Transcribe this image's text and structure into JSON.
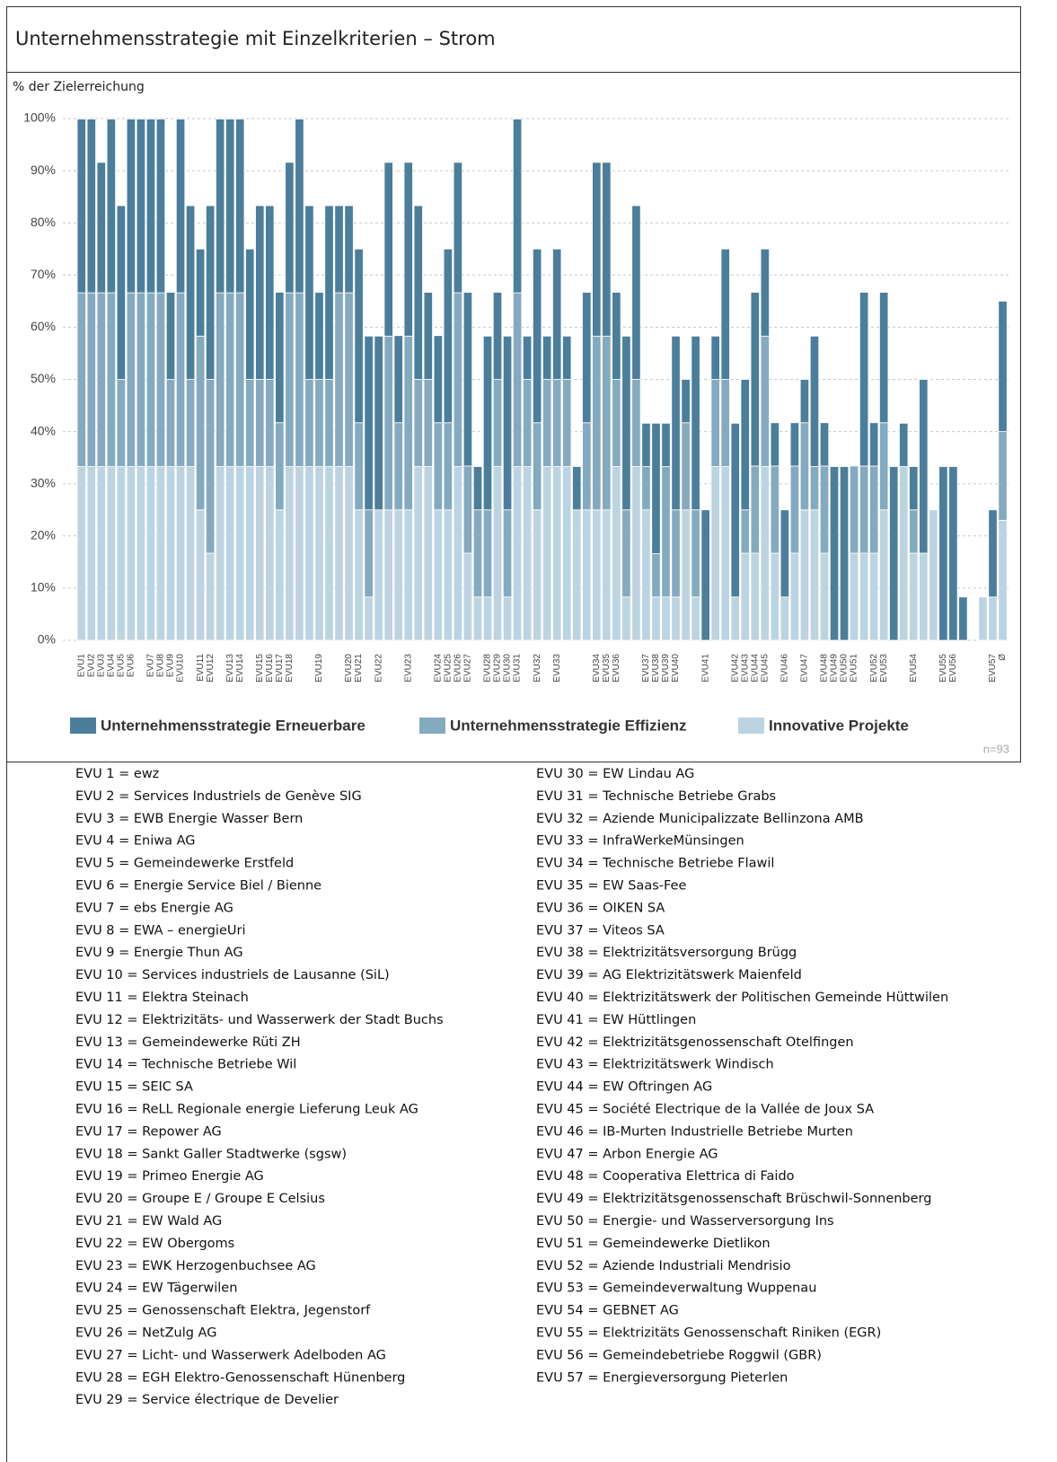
{
  "chart_data": {
    "type": "bar",
    "stacked": true,
    "title": "Unternehmensstrategie mit Einzelkriterien – Strom",
    "y_label": "% der Zielerreichung",
    "note": "n=93",
    "categories": [
      "EVU1",
      "EVU2",
      "EVU3",
      "EVU4",
      "EVU5",
      "EVU6",
      null,
      "EVU7",
      "EVU8",
      "EVU9",
      "EVU10",
      null,
      "EVU11",
      "EVU12",
      null,
      "EVU13",
      "EVU14",
      null,
      "EVU15",
      "EVU16",
      "EVU17",
      "EVU18",
      null,
      null,
      "EVU19",
      null,
      null,
      "EVU20",
      "EVU21",
      null,
      "EVU22",
      null,
      null,
      "EVU23",
      null,
      null,
      "EVU24",
      "EVU25",
      "EVU26",
      "EVU27",
      null,
      "EVU28",
      "EVU29",
      "EVU30",
      "EVU31",
      null,
      "EVU32",
      null,
      "EVU33",
      null,
      null,
      null,
      "EVU34",
      "EVU35",
      "EVU36",
      null,
      null,
      "EVU37",
      "EVU38",
      "EVU39",
      "EVU40",
      null,
      null,
      "EVU41",
      null,
      null,
      "EVU42",
      "EVU43",
      "EVU44",
      "EVU45",
      null,
      "EVU46",
      null,
      "EVU47",
      null,
      "EVU48",
      "EVU49",
      "EVU50",
      "EVU51",
      null,
      "EVU52",
      "EVU53",
      null,
      null,
      "EVU54",
      null,
      null,
      "EVU55",
      "EVU56",
      null,
      null,
      null,
      "EVU57",
      "Ø"
    ],
    "series": [
      {
        "name": "Innovative Projekte",
        "color": "#bcd4e1",
        "values": [
          33.3,
          33.3,
          33.3,
          33.3,
          33.3,
          33.3,
          33.3,
          33.3,
          33.3,
          33.3,
          33.3,
          33.3,
          25,
          16.7,
          33.3,
          33.3,
          33.3,
          33.3,
          33.3,
          33.3,
          25,
          33.3,
          33.3,
          33.3,
          33.3,
          33.3,
          33.3,
          33.3,
          25,
          8.3,
          25,
          25,
          25,
          25,
          33.3,
          33.3,
          25,
          25,
          33.3,
          16.7,
          8.3,
          8.3,
          33.3,
          8.3,
          33.3,
          33.3,
          25,
          33.3,
          33.3,
          33.3,
          25,
          25,
          25,
          25,
          33.3,
          8.3,
          33.3,
          25,
          8.3,
          8.3,
          8.3,
          25,
          8.3,
          0,
          33.3,
          33.3,
          8.3,
          16.7,
          16.7,
          33.3,
          16.7,
          8.3,
          16.7,
          25,
          25,
          16.7,
          0,
          0,
          16.7,
          16.7,
          16.7,
          25,
          0,
          33.3,
          16.7,
          16.7,
          25,
          0,
          0,
          0,
          0,
          8.3,
          8.3,
          23
        ]
      },
      {
        "name": "Unternehmensstrategie Effizienz",
        "color": "#84aabf",
        "values": [
          33.3,
          33.3,
          33.3,
          33.3,
          16.7,
          33.3,
          33.3,
          33.3,
          33.3,
          16.7,
          33.3,
          16.7,
          33.3,
          33.3,
          33.3,
          33.3,
          33.3,
          16.7,
          16.7,
          16.7,
          16.7,
          33.3,
          33.3,
          16.7,
          16.7,
          16.7,
          33.3,
          33.3,
          16.7,
          16.7,
          0,
          33.3,
          16.7,
          33.3,
          16.7,
          16.7,
          16.7,
          16.7,
          33.3,
          16.7,
          16.7,
          16.7,
          16.7,
          16.7,
          33.3,
          16.7,
          16.7,
          16.7,
          16.7,
          16.7,
          0,
          16.7,
          33.3,
          33.3,
          16.7,
          16.7,
          16.7,
          8.3,
          8.3,
          25,
          16.7,
          16.7,
          16.7,
          0,
          16.7,
          16.7,
          0,
          8.3,
          16.7,
          25,
          16.7,
          0,
          16.7,
          16.7,
          8.3,
          16.7,
          0,
          0,
          16.7,
          16.7,
          16.7,
          16.7,
          0,
          0,
          8.3,
          0,
          0,
          0,
          0,
          0,
          0,
          0,
          0,
          17
        ]
      },
      {
        "name": "Unternehmensstrategie Erneuerbare",
        "color": "#4b7e9b",
        "values": [
          33.3,
          33.3,
          25,
          33.3,
          33.3,
          33.3,
          33.3,
          33.3,
          33.3,
          16.7,
          33.3,
          33.3,
          16.7,
          33.3,
          33.3,
          33.3,
          33.3,
          25,
          33.3,
          33.3,
          25,
          25,
          33.3,
          33.3,
          16.7,
          33.3,
          16.7,
          16.7,
          33.3,
          33.3,
          33.3,
          33.3,
          16.7,
          33.3,
          33.3,
          16.7,
          16.7,
          33.3,
          25,
          33.3,
          8.3,
          33.3,
          16.7,
          33.3,
          33.3,
          8.3,
          33.3,
          8.3,
          25,
          8.3,
          8.3,
          25,
          33.3,
          33.3,
          16.7,
          33.3,
          33.3,
          8.3,
          25,
          8.3,
          33.3,
          8.3,
          33.3,
          25,
          8.3,
          25,
          33.3,
          25,
          33.3,
          16.7,
          8.3,
          16.7,
          8.3,
          8.3,
          25,
          8.3,
          33.3,
          33.3,
          0,
          33.3,
          8.3,
          25,
          33.3,
          8.3,
          8.3,
          33.3,
          0,
          33.3,
          33.3,
          8.3,
          0,
          0,
          16.7,
          25
        ]
      }
    ],
    "legend_order": [
      2,
      1,
      0
    ],
    "ylim": [
      0,
      100
    ],
    "yticks": [
      {
        "value": 0,
        "label": "0%"
      },
      {
        "value": 10,
        "label": "10%"
      },
      {
        "value": 20,
        "label": "20%"
      },
      {
        "value": 30,
        "label": "30%"
      },
      {
        "value": 40,
        "label": "40%"
      },
      {
        "value": 50,
        "label": "50%"
      },
      {
        "value": 60,
        "label": "60%"
      },
      {
        "value": 70,
        "label": "70%"
      },
      {
        "value": 80,
        "label": "80%"
      },
      {
        "value": 90,
        "label": "90%"
      },
      {
        "value": 100,
        "label": "100%"
      }
    ],
    "grid": true
  },
  "key": [
    "EVU 1 = ewz",
    "EVU 2 = Services Industriels de Genève SIG",
    "EVU 3 = EWB Energie Wasser Bern",
    "EVU 4 = Eniwa AG",
    "EVU 5 = Gemeindewerke Erstfeld",
    "EVU 6 = Energie Service Biel / Bienne",
    "EVU 7 = ebs Energie AG",
    "EVU 8 = EWA – energieUri",
    "EVU 9 = Energie Thun AG",
    "EVU 10 = Services industriels de Lausanne (SiL)",
    "EVU 11 = Elektra Steinach",
    "EVU 12 = Elektrizitäts- und Wasserwerk der Stadt Buchs",
    "EVU 13 = Gemeindewerke Rüti ZH",
    "EVU 14 = Technische Betriebe Wil",
    "EVU 15 = SEIC SA",
    "EVU 16 = ReLL Regionale energie Lieferung Leuk AG",
    "EVU 17 = Repower AG",
    "EVU 18 = Sankt Galler Stadtwerke (sgsw)",
    "EVU 19 = Primeo Energie AG",
    "EVU 20 = Groupe E / Groupe E Celsius",
    "EVU 21 = EW Wald AG",
    "EVU 22 = EW Obergoms",
    "EVU 23 = EWK Herzogenbuchsee AG",
    "EVU 24 = EW Tägerwilen",
    "EVU 25 = Genossenschaft Elektra, Jegenstorf",
    "EVU 26 = NetZulg AG",
    "EVU 27 = Licht- und Wasserwerk Adelboden AG",
    "EVU 28 = EGH Elektro-Genossenschaft Hünenberg",
    "EVU 29 = Service électrique de Develier",
    "EVU 30 = EW Lindau AG",
    "EVU 31 = Technische Betriebe Grabs",
    "EVU 32 = Aziende Municipalizzate Bellinzona AMB",
    "EVU 33 = InfraWerkeMünsingen",
    "EVU 34 = Technische Betriebe Flawil",
    "EVU 35 = EW Saas-Fee",
    "EVU 36 = OIKEN SA",
    "EVU 37 = Viteos SA",
    "EVU 38 = Elektrizitätsversorgung Brügg",
    "EVU 39 = AG Elektrizitätswerk Maienfeld",
    "EVU 40 = Elektrizitätswerk der Politischen Gemeinde Hüttwilen",
    "EVU 41 = EW Hüttlingen",
    "EVU 42 = Elektrizitätsgenossenschaft Otelfingen",
    "EVU 43 = Elektrizitätswerk Windisch",
    "EVU 44 = EW Oftringen AG",
    "EVU 45 = Société Electrique de la Vallée de Joux SA",
    "EVU 46 = IB-Murten Industrielle Betriebe Murten",
    "EVU 47 = Arbon Energie AG",
    "EVU 48 = Cooperativa Elettrica di Faido",
    "EVU 49 = Elektrizitätsgenossenschaft Brüschwil-Sonnenberg",
    "EVU 50 = Energie- und Wasserversorgung Ins",
    "EVU 51 = Gemeindewerke Dietlikon",
    "EVU 52 = Aziende Industriali Mendrisio",
    "EVU 53 = Gemeindeverwaltung Wuppenau",
    "EVU 54 = GEBNET AG",
    "EVU 55 = Elektrizitäts Genossenschaft Riniken (EGR)",
    "EVU 56 = Gemeindebetriebe Roggwil (GBR)",
    "EVU 57 = Energieversorgung Pieterlen"
  ]
}
